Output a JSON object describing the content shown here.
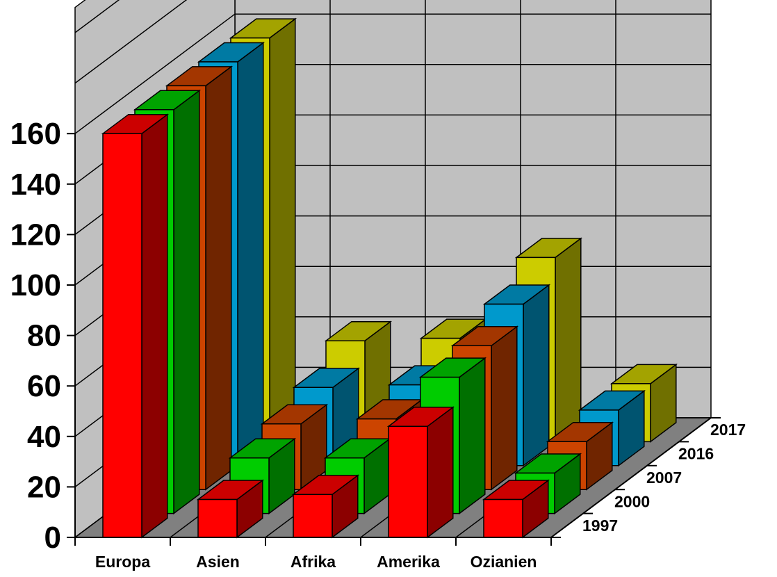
{
  "chart_data": {
    "type": "bar",
    "title": "",
    "xlabel": "",
    "ylabel": "",
    "ylim": [
      0,
      160
    ],
    "y_ticks": [
      "0",
      "20",
      "40",
      "60",
      "80",
      "100",
      "120",
      "140",
      "160"
    ],
    "categories": [
      "Europa",
      "Asien",
      "Afrika",
      "Amerika",
      "Ozianien"
    ],
    "grid": true,
    "series": [
      {
        "name": "1997",
        "values": [
          160,
          15,
          17,
          44,
          15
        ],
        "color": "#ff0000"
      },
      {
        "name": "2000",
        "values": [
          160,
          22,
          22,
          54,
          16
        ],
        "color": "#00cc00"
      },
      {
        "name": "2007",
        "values": [
          160,
          26,
          28,
          57,
          19
        ],
        "color": "#cc4400"
      },
      {
        "name": "2016",
        "values": [
          160,
          31,
          32,
          64,
          22
        ],
        "color": "#0099cc"
      },
      {
        "name": "2017",
        "values": [
          160,
          40,
          41,
          73,
          23
        ],
        "color": "#cccc00"
      }
    ],
    "colors": {
      "wall": "#c0c0c0",
      "floor": "#808080",
      "grid": "#000000"
    }
  }
}
